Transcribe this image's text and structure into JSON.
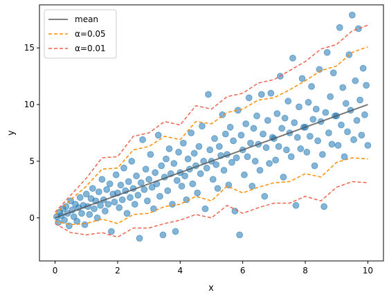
{
  "chart_data": {
    "type": "scatter",
    "title": "",
    "xlabel": "x",
    "ylabel": "y",
    "xlim": [
      -0.5,
      10.5
    ],
    "ylim": [
      -3.8,
      18.8
    ],
    "xticks": [
      0,
      2,
      4,
      6,
      8,
      10
    ],
    "yticks": [
      0,
      5,
      10,
      15
    ],
    "xtick_labels": [
      "0",
      "2",
      "4",
      "6",
      "8",
      "10"
    ],
    "ytick_labels": [
      "0",
      "5",
      "10",
      "15"
    ],
    "grid": false,
    "legend_position": "top-left",
    "legend": [
      {
        "label": "mean",
        "color": "#555555",
        "style": "solid"
      },
      {
        "label": "α=0.05",
        "color": "#ff8c00",
        "style": "dashed"
      },
      {
        "label": "α=0.01",
        "color": "#f0624d",
        "style": "dashed"
      }
    ],
    "scatter_color": "#1f77b4",
    "mean_line": {
      "x": [
        0,
        10
      ],
      "y": [
        0,
        10
      ]
    },
    "band_x": [
      0,
      0.5,
      1,
      1.5,
      2,
      2.5,
      3,
      3.5,
      4,
      4.5,
      5,
      5.5,
      6,
      6.5,
      7,
      7.5,
      8,
      8.5,
      9,
      9.5,
      10
    ],
    "alpha_005_upper": [
      0.3,
      1.6,
      2.8,
      4.3,
      4.4,
      6.0,
      6.3,
      7.2,
      6.9,
      8.5,
      8.3,
      9.3,
      9.6,
      10.4,
      10.6,
      11.3,
      12.1,
      13.0,
      13.4,
      14.6,
      15.1
    ],
    "alpha_005_lower": [
      -0.3,
      -0.6,
      -0.5,
      -0.1,
      -0.5,
      0.3,
      0.4,
      1.0,
      1.2,
      1.9,
      1.5,
      2.8,
      2.2,
      2.7,
      3.1,
      3.2,
      3.9,
      3.6,
      4.9,
      5.3,
      5.2
    ],
    "alpha_001_upper": [
      0.5,
      2.0,
      3.5,
      5.3,
      5.4,
      7.2,
      7.5,
      8.5,
      8.2,
      9.9,
      9.6,
      10.7,
      11.0,
      11.9,
      12.2,
      13.0,
      13.8,
      14.9,
      15.3,
      16.5,
      17.0
    ],
    "alpha_001_lower": [
      -0.5,
      -1.3,
      -1.5,
      -1.3,
      -1.7,
      -0.9,
      -0.9,
      -0.5,
      -0.2,
      0.3,
      0.0,
      1.1,
      0.4,
      0.9,
      1.3,
      1.3,
      1.9,
      1.5,
      2.7,
      3.2,
      3.1
    ],
    "points": [
      [
        0.05,
        0.1
      ],
      [
        0.1,
        -0.4
      ],
      [
        0.15,
        0.5
      ],
      [
        0.2,
        0.2
      ],
      [
        0.25,
        0.8
      ],
      [
        0.3,
        -0.2
      ],
      [
        0.35,
        1.0
      ],
      [
        0.4,
        0.4
      ],
      [
        0.45,
        -0.7
      ],
      [
        0.5,
        1.5
      ],
      [
        0.55,
        0.7
      ],
      [
        0.6,
        0.1
      ],
      [
        0.65,
        1.2
      ],
      [
        0.7,
        -0.3
      ],
      [
        0.75,
        0.9
      ],
      [
        0.8,
        1.8
      ],
      [
        0.85,
        0.4
      ],
      [
        0.9,
        1.1
      ],
      [
        0.95,
        -0.6
      ],
      [
        1.0,
        2.1
      ],
      [
        1.05,
        1.0
      ],
      [
        1.1,
        0.3
      ],
      [
        1.15,
        1.7
      ],
      [
        1.2,
        2.6
      ],
      [
        1.25,
        0.8
      ],
      [
        1.3,
        1.5
      ],
      [
        1.35,
        0.0
      ],
      [
        1.4,
        2.3
      ],
      [
        1.45,
        1.1
      ],
      [
        1.5,
        3.4
      ],
      [
        1.55,
        1.6
      ],
      [
        1.6,
        0.6
      ],
      [
        1.65,
        2.5
      ],
      [
        1.7,
        1.2
      ],
      [
        1.75,
        3.0
      ],
      [
        1.8,
        -1.2
      ],
      [
        1.85,
        2.1
      ],
      [
        1.9,
        1.4
      ],
      [
        1.95,
        3.8
      ],
      [
        2.0,
        2.2
      ],
      [
        2.05,
        0.9
      ],
      [
        2.1,
        2.9
      ],
      [
        2.15,
        1.6
      ],
      [
        2.2,
        4.4
      ],
      [
        2.25,
        2.4
      ],
      [
        2.3,
        0.4
      ],
      [
        2.35,
        3.2
      ],
      [
        2.4,
        1.8
      ],
      [
        2.45,
        5.0
      ],
      [
        2.5,
        2.6
      ],
      [
        2.55,
        1.2
      ],
      [
        2.6,
        3.7
      ],
      [
        2.65,
        2.0
      ],
      [
        2.7,
        -1.8
      ],
      [
        2.75,
        3.1
      ],
      [
        2.8,
        6.9
      ],
      [
        2.85,
        2.5
      ],
      [
        2.9,
        4.3
      ],
      [
        2.95,
        1.5
      ],
      [
        3.0,
        3.4
      ],
      [
        3.05,
        5.6
      ],
      [
        3.1,
        2.7
      ],
      [
        3.15,
        0.8
      ],
      [
        3.2,
        4.0
      ],
      [
        3.25,
        3.0
      ],
      [
        3.3,
        7.3
      ],
      [
        3.35,
        1.9
      ],
      [
        3.4,
        4.6
      ],
      [
        3.45,
        -1.5
      ],
      [
        3.5,
        3.6
      ],
      [
        3.55,
        5.2
      ],
      [
        3.6,
        2.4
      ],
      [
        3.65,
        6.1
      ],
      [
        3.7,
        3.9
      ],
      [
        3.75,
        1.2
      ],
      [
        3.8,
        4.8
      ],
      [
        3.85,
        -1.2
      ],
      [
        3.9,
        3.3
      ],
      [
        3.95,
        5.8
      ],
      [
        4.0,
        4.0
      ],
      [
        4.05,
        2.8
      ],
      [
        4.1,
        6.6
      ],
      [
        4.15,
        3.7
      ],
      [
        4.2,
        1.6
      ],
      [
        4.25,
        5.2
      ],
      [
        4.3,
        4.3
      ],
      [
        4.35,
        7.5
      ],
      [
        4.4,
        3.0
      ],
      [
        4.45,
        5.7
      ],
      [
        4.5,
        4.6
      ],
      [
        4.55,
        2.2
      ],
      [
        4.6,
        6.3
      ],
      [
        4.65,
        3.9
      ],
      [
        4.7,
        8.1
      ],
      [
        4.75,
        5.0
      ],
      [
        4.8,
        0.8
      ],
      [
        4.85,
        4.4
      ],
      [
        4.9,
        10.9
      ],
      [
        4.95,
        6.0
      ],
      [
        5.0,
        5.0
      ],
      [
        5.05,
        3.4
      ],
      [
        5.1,
        7.0
      ],
      [
        5.15,
        4.7
      ],
      [
        5.2,
        2.6
      ],
      [
        5.25,
        6.3
      ],
      [
        5.3,
        5.5
      ],
      [
        5.35,
        9.1
      ],
      [
        5.4,
        4.2
      ],
      [
        5.45,
        7.4
      ],
      [
        5.5,
        5.6
      ],
      [
        5.55,
        2.9
      ],
      [
        5.6,
        8.0
      ],
      [
        5.65,
        4.9
      ],
      [
        5.7,
        6.8
      ],
      [
        5.75,
        0.6
      ],
      [
        5.8,
        5.3
      ],
      [
        5.85,
        9.5
      ],
      [
        5.9,
        -1.5
      ],
      [
        5.95,
        7.3
      ],
      [
        6.0,
        6.0
      ],
      [
        6.05,
        3.8
      ],
      [
        6.1,
        8.3
      ],
      [
        6.15,
        5.4
      ],
      [
        6.2,
        10.6
      ],
      [
        6.25,
        6.6
      ],
      [
        6.3,
        2.8
      ],
      [
        6.35,
        7.9
      ],
      [
        6.4,
        5.0
      ],
      [
        6.45,
        9.0
      ],
      [
        6.5,
        6.5
      ],
      [
        6.55,
        4.2
      ],
      [
        6.6,
        10.9
      ],
      [
        6.65,
        7.4
      ],
      [
        6.7,
        1.9
      ],
      [
        6.75,
        6.2
      ],
      [
        6.8,
        8.6
      ],
      [
        6.85,
        4.8
      ],
      [
        6.9,
        11.0
      ],
      [
        6.95,
        7.1
      ],
      [
        7.0,
        7.0
      ],
      [
        7.05,
        5.1
      ],
      [
        7.1,
        9.2
      ],
      [
        7.15,
        6.3
      ],
      [
        7.2,
        12.5
      ],
      [
        7.25,
        7.9
      ],
      [
        7.3,
        3.6
      ],
      [
        7.35,
        8.8
      ],
      [
        7.4,
        6.0
      ],
      [
        7.45,
        10.3
      ],
      [
        7.5,
        7.5
      ],
      [
        7.55,
        5.4
      ],
      [
        7.6,
        14.1
      ],
      [
        7.65,
        8.4
      ],
      [
        7.7,
        1.1
      ],
      [
        7.75,
        7.1
      ],
      [
        7.8,
        9.8
      ],
      [
        7.85,
        6.1
      ],
      [
        7.9,
        12.3
      ],
      [
        7.95,
        8.0
      ],
      [
        8.0,
        8.0
      ],
      [
        8.05,
        5.8
      ],
      [
        8.1,
        10.2
      ],
      [
        8.15,
        7.2
      ],
      [
        8.2,
        11.6
      ],
      [
        8.25,
        8.7
      ],
      [
        8.3,
        4.6
      ],
      [
        8.35,
        9.6
      ],
      [
        8.4,
        6.8
      ],
      [
        8.45,
        13.1
      ],
      [
        8.5,
        8.5
      ],
      [
        8.55,
        5.6
      ],
      [
        8.6,
        1.0
      ],
      [
        8.65,
        9.3
      ],
      [
        8.7,
        14.6
      ],
      [
        8.75,
        7.5
      ],
      [
        8.8,
        10.7
      ],
      [
        8.85,
        6.5
      ],
      [
        8.9,
        12.8
      ],
      [
        8.95,
        9.0
      ],
      [
        9.0,
        9.0
      ],
      [
        9.05,
        6.4
      ],
      [
        9.1,
        16.8
      ],
      [
        9.15,
        8.2
      ],
      [
        9.2,
        11.5
      ],
      [
        9.25,
        5.4
      ],
      [
        9.3,
        10.1
      ],
      [
        9.35,
        7.6
      ],
      [
        9.4,
        14.4
      ],
      [
        9.45,
        9.5
      ],
      [
        9.5,
        17.9
      ],
      [
        9.55,
        6.9
      ],
      [
        9.6,
        12.1
      ],
      [
        9.65,
        8.6
      ],
      [
        9.7,
        16.7
      ],
      [
        9.75,
        10.4
      ],
      [
        9.8,
        7.3
      ],
      [
        9.85,
        13.2
      ],
      [
        9.9,
        9.1
      ],
      [
        9.95,
        11.7
      ],
      [
        10.0,
        6.4
      ]
    ]
  }
}
